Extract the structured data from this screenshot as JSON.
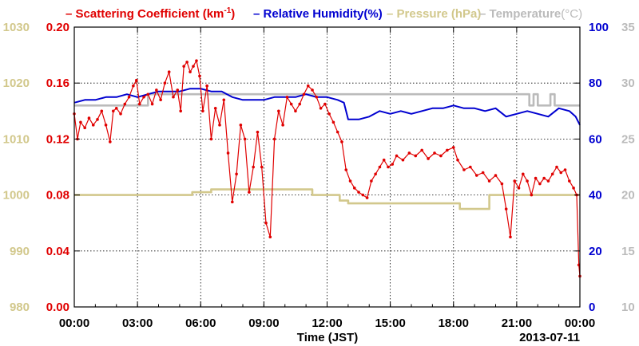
{
  "chart_data": {
    "type": "line",
    "date_label": "2013-07-11",
    "xlabel": "Time (JST)",
    "x_ticks": [
      "00:00",
      "03:00",
      "06:00",
      "09:00",
      "12:00",
      "15:00",
      "18:00",
      "21:00",
      "00:00"
    ],
    "xlim_hours": [
      0,
      24
    ],
    "grid": true,
    "legend_placement": "top",
    "axes": {
      "pressure": {
        "range": [
          980,
          1030
        ],
        "ticks": [
          "980",
          "990",
          "1000",
          "1010",
          "1020",
          "1030"
        ],
        "color": "#d2c88c",
        "side": "left-outer"
      },
      "scattering": {
        "range": [
          0.0,
          0.2
        ],
        "ticks": [
          "0.00",
          "0.04",
          "0.08",
          "0.12",
          "0.16",
          "0.20"
        ],
        "color": "#e00000",
        "side": "left-inner"
      },
      "humidity": {
        "range": [
          0,
          100
        ],
        "ticks": [
          "0",
          "20",
          "40",
          "60",
          "80",
          "100"
        ],
        "color": "#0000d0",
        "side": "right-inner"
      },
      "temperature": {
        "range": [
          10,
          35
        ],
        "ticks": [
          "10",
          "15",
          "20",
          "25",
          "30",
          "35"
        ],
        "color": "#bbbbbb",
        "side": "right-outer"
      }
    },
    "series": [
      {
        "name": "Scattering Coefficient (km",
        "name_sup": "-1",
        "name_suffix": ")",
        "axis": "scattering",
        "color": "#e00000",
        "marker": "dot",
        "x": [
          0,
          0.15,
          0.3,
          0.5,
          0.7,
          0.9,
          1.1,
          1.3,
          1.5,
          1.7,
          1.85,
          2.0,
          2.2,
          2.4,
          2.6,
          2.8,
          2.95,
          3.1,
          3.3,
          3.5,
          3.7,
          3.9,
          4.1,
          4.3,
          4.5,
          4.7,
          4.9,
          5.05,
          5.2,
          5.35,
          5.5,
          5.65,
          5.8,
          5.95,
          6.1,
          6.3,
          6.5,
          6.7,
          6.9,
          7.1,
          7.3,
          7.5,
          7.7,
          7.9,
          8.1,
          8.3,
          8.5,
          8.7,
          8.9,
          9.1,
          9.3,
          9.5,
          9.7,
          9.9,
          10.1,
          10.3,
          10.5,
          10.7,
          10.9,
          11.1,
          11.3,
          11.5,
          11.7,
          11.9,
          12.1,
          12.3,
          12.5,
          12.7,
          12.9,
          13.1,
          13.3,
          13.5,
          13.7,
          13.9,
          14.1,
          14.3,
          14.5,
          14.7,
          14.9,
          15.1,
          15.3,
          15.6,
          15.9,
          16.2,
          16.5,
          16.8,
          17.1,
          17.4,
          17.7,
          18.0,
          18.2,
          18.5,
          18.8,
          19.1,
          19.4,
          19.7,
          20.0,
          20.3,
          20.5,
          20.7,
          20.9,
          21.1,
          21.3,
          21.5,
          21.7,
          21.9,
          22.1,
          22.3,
          22.5,
          22.7,
          22.9,
          23.1,
          23.3,
          23.5,
          23.7,
          23.85,
          23.95,
          24.0
        ],
        "values": [
          0.138,
          0.12,
          0.132,
          0.128,
          0.135,
          0.13,
          0.134,
          0.14,
          0.13,
          0.118,
          0.14,
          0.142,
          0.138,
          0.145,
          0.15,
          0.158,
          0.162,
          0.145,
          0.15,
          0.152,
          0.145,
          0.155,
          0.148,
          0.16,
          0.168,
          0.15,
          0.155,
          0.14,
          0.172,
          0.175,
          0.168,
          0.172,
          0.176,
          0.165,
          0.14,
          0.158,
          0.12,
          0.142,
          0.13,
          0.148,
          0.11,
          0.075,
          0.095,
          0.13,
          0.12,
          0.082,
          0.1,
          0.125,
          0.1,
          0.06,
          0.05,
          0.12,
          0.14,
          0.13,
          0.15,
          0.145,
          0.14,
          0.145,
          0.152,
          0.158,
          0.155,
          0.15,
          0.142,
          0.145,
          0.138,
          0.132,
          0.125,
          0.118,
          0.098,
          0.09,
          0.085,
          0.082,
          0.08,
          0.078,
          0.09,
          0.095,
          0.1,
          0.105,
          0.1,
          0.102,
          0.108,
          0.105,
          0.11,
          0.108,
          0.112,
          0.106,
          0.11,
          0.108,
          0.112,
          0.114,
          0.105,
          0.098,
          0.1,
          0.094,
          0.096,
          0.09,
          0.094,
          0.088,
          0.07,
          0.05,
          0.09,
          0.085,
          0.095,
          0.09,
          0.08,
          0.092,
          0.088,
          0.092,
          0.09,
          0.095,
          0.1,
          0.096,
          0.098,
          0.09,
          0.085,
          0.08,
          0.03,
          0.022
        ]
      },
      {
        "name": "Relative Humidity(%)",
        "axis": "humidity",
        "color": "#0000d0",
        "x": [
          0,
          0.5,
          1.0,
          1.5,
          2.0,
          2.5,
          3.0,
          3.5,
          4.0,
          4.5,
          5.0,
          5.5,
          6.0,
          6.5,
          7.0,
          7.5,
          8.0,
          8.5,
          9.0,
          9.5,
          10.0,
          10.5,
          11.0,
          11.5,
          12.0,
          12.5,
          12.8,
          13.0,
          13.5,
          14.0,
          14.5,
          15.0,
          15.5,
          16.0,
          16.5,
          17.0,
          17.5,
          18.0,
          18.5,
          19.0,
          19.5,
          20.0,
          20.5,
          21.0,
          21.5,
          22.0,
          22.5,
          23.0,
          23.5,
          23.8,
          24.0
        ],
        "values": [
          73,
          74,
          74,
          75,
          75,
          76,
          75,
          76,
          77,
          77,
          77,
          78,
          78,
          77,
          77,
          75,
          74,
          74,
          74,
          75,
          75,
          75,
          76,
          75,
          75,
          74,
          73,
          67,
          67,
          68,
          70,
          69,
          70,
          69,
          70,
          71,
          71,
          72,
          71,
          71,
          70,
          71,
          68,
          69,
          70,
          69,
          68,
          71,
          70,
          68,
          65
        ]
      },
      {
        "name": "Pressure (hPa)",
        "axis": "pressure",
        "color": "#d2c88c",
        "x": [
          0,
          4.8,
          5.1,
          5.6,
          6.2,
          6.5,
          10.4,
          11.3,
          11.7,
          12.6,
          13.0,
          16.8,
          18.3,
          19.7,
          24.0
        ],
        "values": [
          1000,
          1000,
          1000,
          1000.5,
          1000.5,
          1001,
          1001,
          1000,
          1000,
          999,
          998.5,
          998.5,
          997.5,
          1000,
          1000
        ]
      },
      {
        "name": "Temperature",
        "name_suffix": "(°C)",
        "axis": "temperature",
        "color": "#bbbbbb",
        "x": [
          0,
          2.8,
          3.5,
          7.0,
          10.6,
          11.5,
          12.0,
          20.5,
          20.8,
          21.4,
          21.6,
          21.8,
          22.0,
          22.6,
          22.8,
          24.0
        ],
        "values": [
          28,
          28,
          29,
          29,
          29,
          29,
          29,
          29,
          29,
          29,
          28,
          29,
          28,
          29,
          28,
          28
        ]
      }
    ]
  }
}
